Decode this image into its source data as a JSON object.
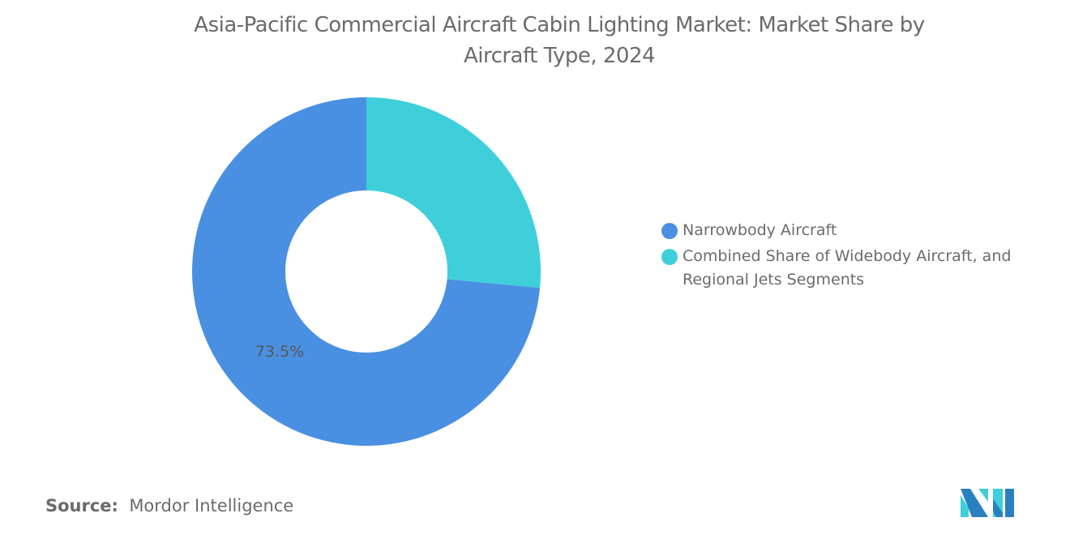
{
  "chart_data": {
    "type": "pie",
    "variant": "donut",
    "title": "Asia-Pacific Commercial Aircraft Cabin Lighting Market: Market Share by Aircraft Type, 2024",
    "title_lines": [
      "Asia-Pacific Commercial Aircraft Cabin Lighting Market: Market Share by",
      "Aircraft Type, 2024"
    ],
    "slices": [
      {
        "name": "Combined Share of Widebody Aircraft, and Regional Jets Segments",
        "value": 26.5,
        "color": "#3ecfda",
        "label": ""
      },
      {
        "name": "Narrowbody Aircraft",
        "value": 73.5,
        "color": "#4a90e2",
        "label": "73.5%"
      }
    ],
    "legend": {
      "position": "right",
      "entries": [
        "Narrowbody Aircraft",
        "Combined Share of Widebody Aircraft, and Regional Jets Segments"
      ],
      "entry_lines": [
        [
          "Narrowbody Aircraft"
        ],
        [
          "Combined Share of Widebody Aircraft, and",
          "Regional Jets Segments"
        ]
      ]
    }
  },
  "source": {
    "label": "Source:",
    "value": "Mordor Intelligence"
  },
  "logo": {
    "name": "Mordor Intelligence logo",
    "colors": [
      "#2a7fc1",
      "#3ecfda"
    ]
  }
}
